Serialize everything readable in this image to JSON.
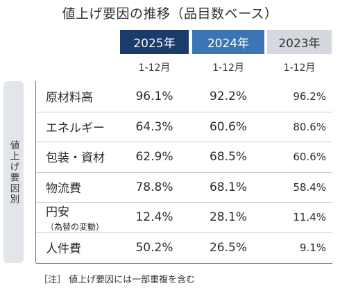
{
  "title": "値上げ要因の推移（品目数ベース）",
  "side_label": "値上げ要因別",
  "note": "［注］ 値上げ要因には一部重複を含む",
  "chart_data": {
    "type": "table",
    "columns": [
      {
        "year": "2025年",
        "period": "1-12月"
      },
      {
        "year": "2024年",
        "period": "1-12月"
      },
      {
        "year": "2023年",
        "period": "1-12月"
      }
    ],
    "rows": [
      {
        "label": "原材料高",
        "sublabel": "",
        "values": [
          "96.1%",
          "92.2%",
          "96.2%"
        ]
      },
      {
        "label": "エネルギー",
        "sublabel": "",
        "values": [
          "64.3%",
          "60.6%",
          "80.6%"
        ]
      },
      {
        "label": "包装・資材",
        "sublabel": "",
        "values": [
          "62.9%",
          "68.5%",
          "60.6%"
        ]
      },
      {
        "label": "物流費",
        "sublabel": "",
        "values": [
          "78.8%",
          "68.1%",
          "58.4%"
        ]
      },
      {
        "label": "円安",
        "sublabel": "（為替の変動）",
        "values": [
          "12.4%",
          "28.1%",
          "11.4%"
        ]
      },
      {
        "label": "人件費",
        "sublabel": "",
        "values": [
          "50.2%",
          "26.5%",
          "9.1%"
        ]
      }
    ],
    "colors": {
      "year_2025": "#1b3c6b",
      "year_2024": "#3b75b6",
      "year_2023": "#d5d9df"
    }
  }
}
